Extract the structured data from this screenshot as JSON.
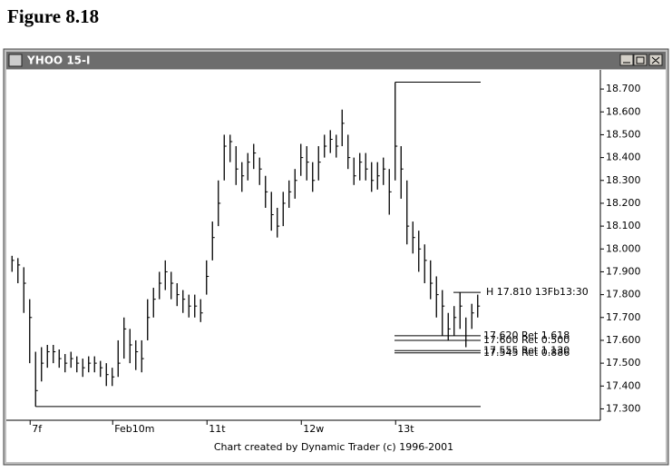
{
  "chart_data": {
    "type": "hlc",
    "figure_title": "Figure 8.18",
    "window_title": "YHOO 15-I",
    "footer": "Chart created by Dynamic Trader (c) 1996-2001",
    "categories": [
      null,
      null,
      null,
      null,
      "7f",
      null,
      null,
      null,
      null,
      null,
      null,
      null,
      null,
      null,
      null,
      null,
      null,
      null,
      "Feb10m",
      null,
      null,
      null,
      null,
      null,
      null,
      null,
      null,
      null,
      null,
      null,
      null,
      null,
      null,
      null,
      "11t",
      null,
      null,
      null,
      null,
      null,
      null,
      null,
      null,
      null,
      null,
      null,
      null,
      null,
      null,
      null,
      "12w",
      null,
      null,
      null,
      null,
      null,
      null,
      null,
      null,
      null,
      null,
      null,
      null,
      null,
      null,
      null,
      "13t",
      null,
      null,
      null,
      null,
      null,
      null,
      null,
      null,
      null,
      null,
      null,
      null,
      null
    ],
    "series": [
      {
        "name": "High",
        "values": [
          17.97,
          17.96,
          17.92,
          17.78,
          17.55,
          17.57,
          17.58,
          17.58,
          17.56,
          17.54,
          17.55,
          17.53,
          17.52,
          17.53,
          17.53,
          17.51,
          17.5,
          17.48,
          17.6,
          17.7,
          17.65,
          17.6,
          17.6,
          17.78,
          17.83,
          17.9,
          17.95,
          17.9,
          17.85,
          17.82,
          17.8,
          17.8,
          17.78,
          17.95,
          18.12,
          18.3,
          18.5,
          18.5,
          18.45,
          18.38,
          18.42,
          18.46,
          18.4,
          18.32,
          18.25,
          18.18,
          18.25,
          18.3,
          18.35,
          18.46,
          18.45,
          18.38,
          18.45,
          18.5,
          18.52,
          18.5,
          18.61,
          18.5,
          18.4,
          18.42,
          18.42,
          18.38,
          18.38,
          18.4,
          18.35,
          18.73,
          18.45,
          18.3,
          18.12,
          18.08,
          18.02,
          17.95,
          17.88,
          17.82,
          17.72,
          17.75,
          17.81,
          17.7,
          17.76,
          17.8
        ]
      },
      {
        "name": "Low",
        "values": [
          17.9,
          17.85,
          17.72,
          17.5,
          17.31,
          17.42,
          17.48,
          17.5,
          17.48,
          17.46,
          17.48,
          17.46,
          17.44,
          17.46,
          17.46,
          17.44,
          17.4,
          17.4,
          17.44,
          17.52,
          17.5,
          17.47,
          17.46,
          17.6,
          17.7,
          17.78,
          17.82,
          17.78,
          17.75,
          17.72,
          17.7,
          17.7,
          17.68,
          17.8,
          17.95,
          18.1,
          18.3,
          18.38,
          18.28,
          18.25,
          18.3,
          18.35,
          18.28,
          18.18,
          18.08,
          18.05,
          18.1,
          18.18,
          18.22,
          18.32,
          18.3,
          18.25,
          18.3,
          18.4,
          18.42,
          18.4,
          18.45,
          18.35,
          18.28,
          18.3,
          18.3,
          18.25,
          18.26,
          18.28,
          18.15,
          18.3,
          18.22,
          18.02,
          17.98,
          17.9,
          17.85,
          17.78,
          17.7,
          17.62,
          17.6,
          17.62,
          17.65,
          17.57,
          17.65,
          17.7
        ]
      },
      {
        "name": "Close",
        "values": [
          17.95,
          17.93,
          17.85,
          17.7,
          17.38,
          17.5,
          17.55,
          17.55,
          17.52,
          17.5,
          17.52,
          17.5,
          17.48,
          17.5,
          17.5,
          17.48,
          17.45,
          17.44,
          17.5,
          17.65,
          17.58,
          17.55,
          17.52,
          17.7,
          17.78,
          17.85,
          17.9,
          17.85,
          17.8,
          17.78,
          17.75,
          17.75,
          17.72,
          17.88,
          18.05,
          18.2,
          18.45,
          18.47,
          18.35,
          18.32,
          18.38,
          18.42,
          18.35,
          18.25,
          18.15,
          18.1,
          18.2,
          18.25,
          18.3,
          18.4,
          18.38,
          18.3,
          18.38,
          18.45,
          18.48,
          18.45,
          18.55,
          18.4,
          18.32,
          18.38,
          18.35,
          18.3,
          18.32,
          18.35,
          18.25,
          18.45,
          18.35,
          18.1,
          18.05,
          18.0,
          17.95,
          17.85,
          17.8,
          17.75,
          17.65,
          17.7,
          17.75,
          17.6,
          17.72,
          17.75
        ]
      }
    ],
    "high_marker": {
      "value": 17.81,
      "label": "H 17.810 13Fb13:30"
    },
    "levels": [
      {
        "value": 17.62,
        "label": "17.620 Ret 1.618"
      },
      {
        "value": 17.6,
        "label": "17.600 Ret 0.500"
      },
      {
        "value": 17.555,
        "label": "17.555 Ret 1.130"
      },
      {
        "value": 17.545,
        "label": "17.545 Ret 0.886"
      }
    ],
    "ylim": [
      17.27,
      18.76
    ],
    "yticks": [
      {
        "value": 17.3,
        "label": "17.300"
      },
      {
        "value": 17.4,
        "label": "17.400"
      },
      {
        "value": 17.5,
        "label": "17.500"
      },
      {
        "value": 17.6,
        "label": "17.600"
      },
      {
        "value": 17.7,
        "label": "17.700"
      },
      {
        "value": 17.8,
        "label": "17.800"
      },
      {
        "value": 17.9,
        "label": "17.900"
      },
      {
        "value": 18.0,
        "label": "18.000"
      },
      {
        "value": 18.1,
        "label": "18.100"
      },
      {
        "value": 18.2,
        "label": "18.200"
      },
      {
        "value": 18.3,
        "label": "18.300"
      },
      {
        "value": 18.4,
        "label": "18.400"
      },
      {
        "value": 18.5,
        "label": "18.500"
      },
      {
        "value": 18.6,
        "label": "18.600"
      },
      {
        "value": 18.7,
        "label": "18.700"
      }
    ],
    "color": "#000000"
  }
}
